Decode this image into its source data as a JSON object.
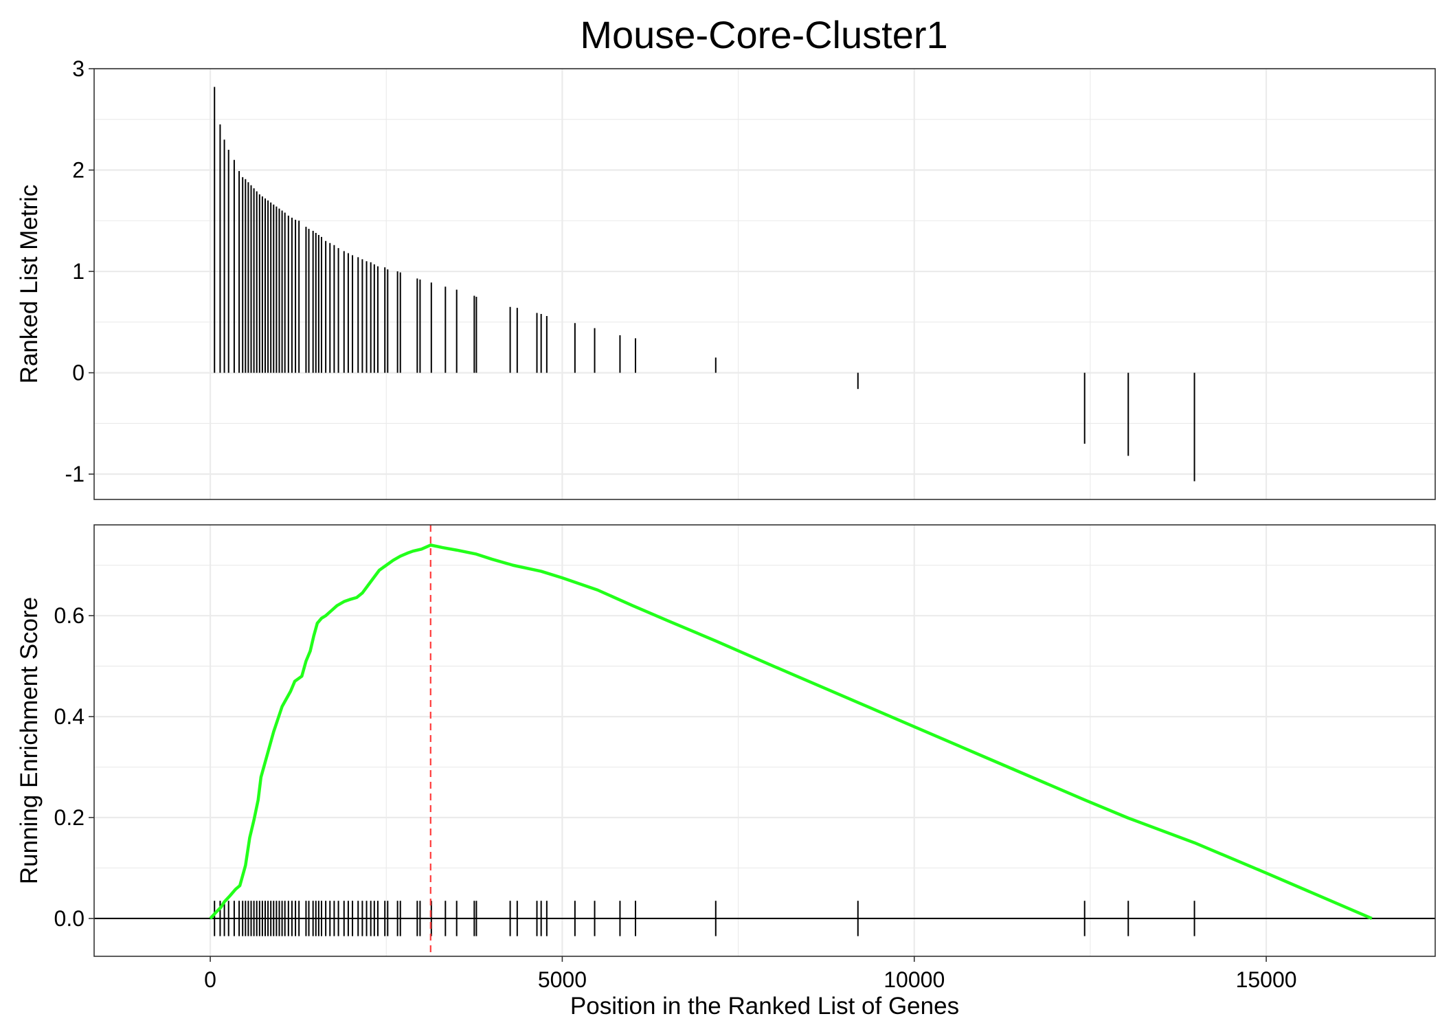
{
  "title": "Mouse-Core-Cluster1",
  "colors": {
    "running_score_line": "#22ff1a",
    "peak_line": "#ff3b3b",
    "hit_bars": "#000000",
    "grid": "#ebebeb",
    "panel_border": "#333333"
  },
  "chart_data": [
    {
      "type": "bar",
      "panel": "ranked-list-metric",
      "title": "",
      "xlabel": "",
      "ylabel": "Ranked List Metric",
      "xlim": [
        -1650,
        17400
      ],
      "ylim": [
        -1.25,
        3.0
      ],
      "grid": true,
      "y_ticks": [
        -1,
        0,
        1,
        2,
        3
      ],
      "y_tick_labels": [
        "-1",
        "0",
        "1",
        "2",
        "3"
      ],
      "hits": [
        {
          "x": 60,
          "y": 2.82
        },
        {
          "x": 140,
          "y": 2.45
        },
        {
          "x": 200,
          "y": 2.3
        },
        {
          "x": 260,
          "y": 2.2
        },
        {
          "x": 340,
          "y": 2.1
        },
        {
          "x": 410,
          "y": 1.99
        },
        {
          "x": 460,
          "y": 1.93
        },
        {
          "x": 500,
          "y": 1.91
        },
        {
          "x": 540,
          "y": 1.88
        },
        {
          "x": 580,
          "y": 1.85
        },
        {
          "x": 620,
          "y": 1.82
        },
        {
          "x": 660,
          "y": 1.79
        },
        {
          "x": 700,
          "y": 1.76
        },
        {
          "x": 740,
          "y": 1.74
        },
        {
          "x": 780,
          "y": 1.72
        },
        {
          "x": 820,
          "y": 1.7
        },
        {
          "x": 860,
          "y": 1.68
        },
        {
          "x": 900,
          "y": 1.66
        },
        {
          "x": 940,
          "y": 1.64
        },
        {
          "x": 980,
          "y": 1.62
        },
        {
          "x": 1020,
          "y": 1.6
        },
        {
          "x": 1060,
          "y": 1.58
        },
        {
          "x": 1110,
          "y": 1.55
        },
        {
          "x": 1160,
          "y": 1.53
        },
        {
          "x": 1210,
          "y": 1.51
        },
        {
          "x": 1260,
          "y": 1.5
        },
        {
          "x": 1360,
          "y": 1.44
        },
        {
          "x": 1400,
          "y": 1.42
        },
        {
          "x": 1460,
          "y": 1.4
        },
        {
          "x": 1500,
          "y": 1.38
        },
        {
          "x": 1540,
          "y": 1.36
        },
        {
          "x": 1580,
          "y": 1.34
        },
        {
          "x": 1640,
          "y": 1.3
        },
        {
          "x": 1700,
          "y": 1.28
        },
        {
          "x": 1760,
          "y": 1.26
        },
        {
          "x": 1820,
          "y": 1.23
        },
        {
          "x": 1900,
          "y": 1.2
        },
        {
          "x": 1960,
          "y": 1.18
        },
        {
          "x": 2020,
          "y": 1.16
        },
        {
          "x": 2100,
          "y": 1.14
        },
        {
          "x": 2160,
          "y": 1.12
        },
        {
          "x": 2220,
          "y": 1.1
        },
        {
          "x": 2280,
          "y": 1.09
        },
        {
          "x": 2330,
          "y": 1.07
        },
        {
          "x": 2380,
          "y": 1.05
        },
        {
          "x": 2480,
          "y": 1.04
        },
        {
          "x": 2520,
          "y": 1.02
        },
        {
          "x": 2660,
          "y": 1.0
        },
        {
          "x": 2700,
          "y": 0.99
        },
        {
          "x": 2940,
          "y": 0.93
        },
        {
          "x": 2980,
          "y": 0.92
        },
        {
          "x": 3140,
          "y": 0.89
        },
        {
          "x": 3340,
          "y": 0.85
        },
        {
          "x": 3500,
          "y": 0.82
        },
        {
          "x": 3750,
          "y": 0.76
        },
        {
          "x": 3780,
          "y": 0.75
        },
        {
          "x": 4260,
          "y": 0.65
        },
        {
          "x": 4360,
          "y": 0.64
        },
        {
          "x": 4640,
          "y": 0.59
        },
        {
          "x": 4700,
          "y": 0.58
        },
        {
          "x": 4780,
          "y": 0.56
        },
        {
          "x": 5180,
          "y": 0.49
        },
        {
          "x": 5460,
          "y": 0.44
        },
        {
          "x": 5820,
          "y": 0.37
        },
        {
          "x": 6040,
          "y": 0.34
        },
        {
          "x": 7180,
          "y": 0.15
        },
        {
          "x": 9200,
          "y": -0.16
        },
        {
          "x": 12420,
          "y": -0.7
        },
        {
          "x": 13040,
          "y": -0.82
        },
        {
          "x": 13980,
          "y": -1.07
        }
      ]
    },
    {
      "type": "line",
      "panel": "running-enrichment-score",
      "title": "",
      "xlabel": "Position in the Ranked List of Genes",
      "ylabel": "Running Enrichment Score",
      "xlim": [
        -1650,
        17400
      ],
      "ylim": [
        -0.075,
        0.78
      ],
      "grid": true,
      "x_ticks": [
        0,
        5000,
        10000,
        15000
      ],
      "x_tick_labels": [
        "0",
        "5000",
        "10000",
        "15000"
      ],
      "y_ticks": [
        0.0,
        0.2,
        0.4,
        0.6
      ],
      "y_tick_labels": [
        "0.0",
        "0.2",
        "0.4",
        "0.6"
      ],
      "peak_x": 3130,
      "peak_es": 0.74,
      "series": [
        {
          "name": "",
          "points": [
            [
              0,
              0.0
            ],
            [
              80,
              0.012
            ],
            [
              150,
              0.022
            ],
            [
              200,
              0.033
            ],
            [
              280,
              0.045
            ],
            [
              360,
              0.058
            ],
            [
              420,
              0.065
            ],
            [
              460,
              0.085
            ],
            [
              500,
              0.105
            ],
            [
              560,
              0.16
            ],
            [
              620,
              0.195
            ],
            [
              680,
              0.235
            ],
            [
              720,
              0.28
            ],
            [
              780,
              0.31
            ],
            [
              840,
              0.34
            ],
            [
              900,
              0.37
            ],
            [
              960,
              0.395
            ],
            [
              1020,
              0.42
            ],
            [
              1080,
              0.435
            ],
            [
              1140,
              0.45
            ],
            [
              1200,
              0.47
            ],
            [
              1300,
              0.48
            ],
            [
              1360,
              0.51
            ],
            [
              1420,
              0.53
            ],
            [
              1470,
              0.56
            ],
            [
              1520,
              0.585
            ],
            [
              1580,
              0.595
            ],
            [
              1640,
              0.6
            ],
            [
              1720,
              0.61
            ],
            [
              1800,
              0.62
            ],
            [
              1900,
              0.628
            ],
            [
              1980,
              0.632
            ],
            [
              2080,
              0.636
            ],
            [
              2160,
              0.645
            ],
            [
              2240,
              0.66
            ],
            [
              2320,
              0.675
            ],
            [
              2400,
              0.69
            ],
            [
              2500,
              0.7
            ],
            [
              2600,
              0.71
            ],
            [
              2700,
              0.718
            ],
            [
              2800,
              0.724
            ],
            [
              2880,
              0.728
            ],
            [
              3000,
              0.732
            ],
            [
              3130,
              0.74
            ],
            [
              3300,
              0.735
            ],
            [
              3500,
              0.73
            ],
            [
              3780,
              0.722
            ],
            [
              4000,
              0.712
            ],
            [
              4300,
              0.7
            ],
            [
              4700,
              0.688
            ],
            [
              5000,
              0.675
            ],
            [
              5500,
              0.651
            ],
            [
              6000,
              0.62
            ],
            [
              6500,
              0.59
            ],
            [
              7180,
              0.55
            ],
            [
              8000,
              0.5
            ],
            [
              9200,
              0.428
            ],
            [
              10000,
              0.38
            ],
            [
              11000,
              0.32
            ],
            [
              12420,
              0.235
            ],
            [
              13040,
              0.199
            ],
            [
              13980,
              0.15
            ],
            [
              15000,
              0.09
            ],
            [
              16500,
              0.0
            ]
          ]
        }
      ],
      "hit_positions": [
        60,
        140,
        200,
        260,
        340,
        410,
        460,
        500,
        540,
        580,
        620,
        660,
        700,
        740,
        780,
        820,
        860,
        900,
        940,
        980,
        1020,
        1060,
        1110,
        1160,
        1210,
        1260,
        1360,
        1400,
        1460,
        1500,
        1540,
        1580,
        1640,
        1700,
        1760,
        1820,
        1900,
        1960,
        2020,
        2100,
        2160,
        2220,
        2280,
        2330,
        2380,
        2480,
        2520,
        2660,
        2700,
        2940,
        2980,
        3140,
        3340,
        3500,
        3750,
        3780,
        4260,
        4360,
        4640,
        4700,
        4780,
        5180,
        5460,
        5820,
        6040,
        7180,
        9200,
        12420,
        13040,
        13980
      ]
    }
  ]
}
